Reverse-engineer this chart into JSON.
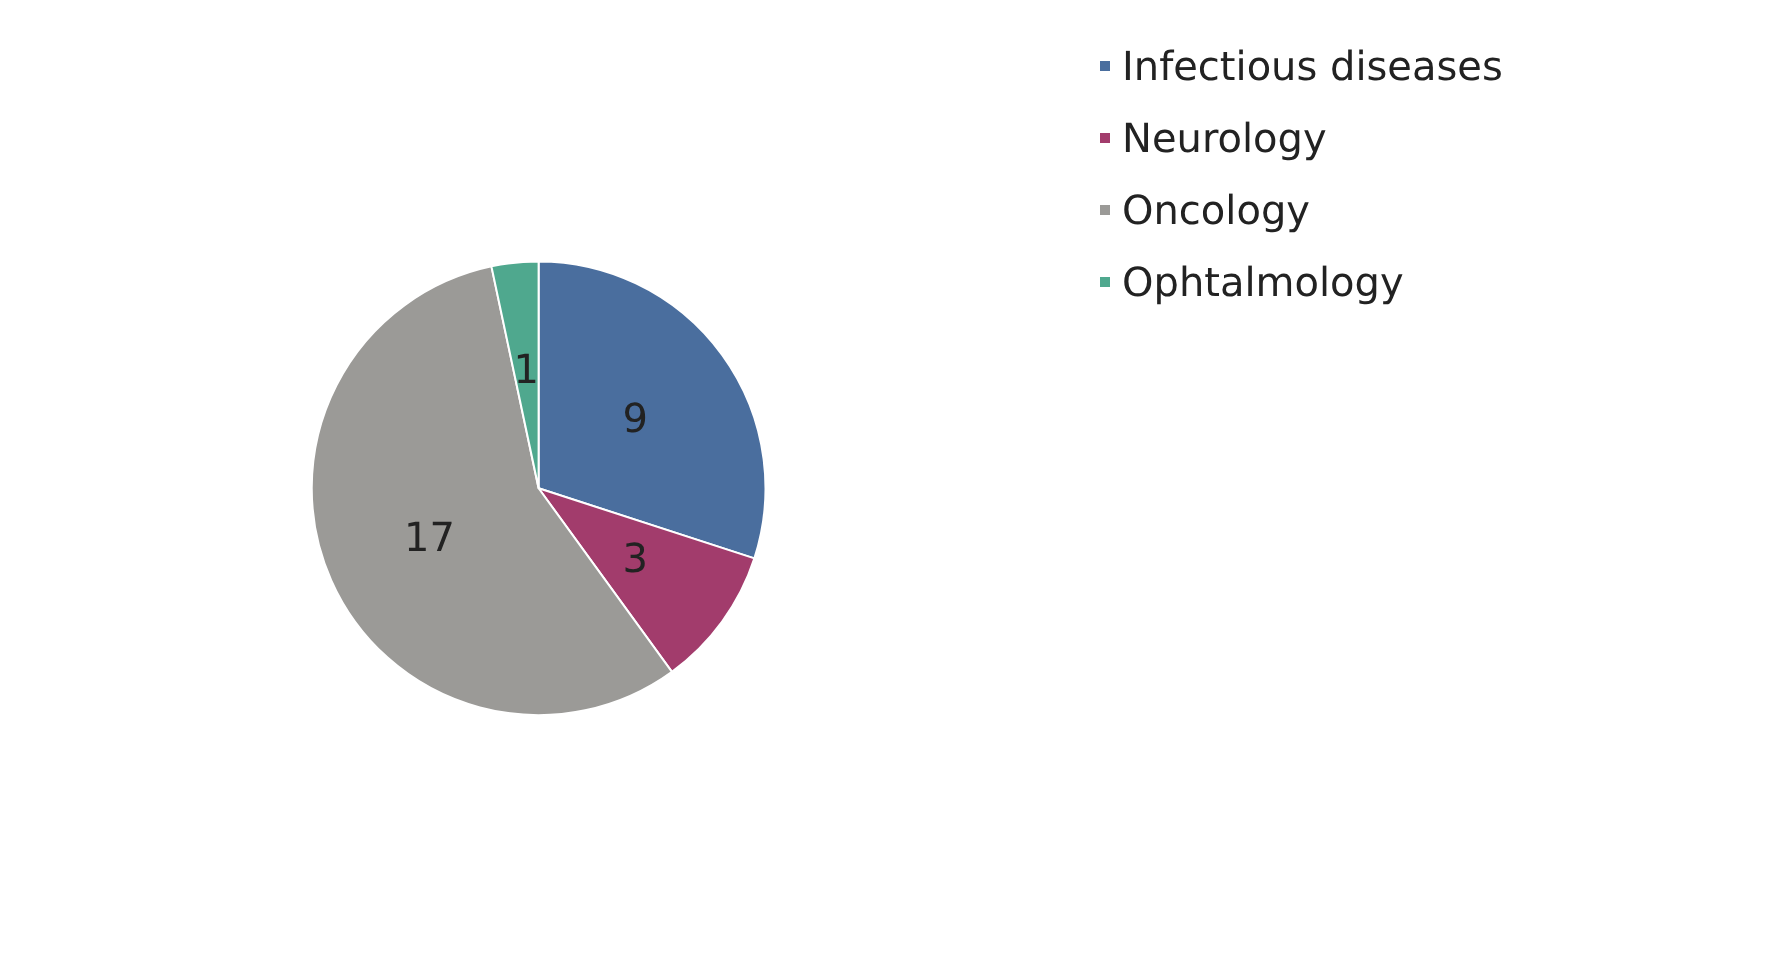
{
  "chart_data": {
    "type": "pie",
    "categories": [
      "Infectious diseases",
      "Neurology",
      "Oncology",
      "Ophtalmology"
    ],
    "values": [
      9,
      3,
      17,
      1
    ],
    "colors": [
      "#4a6e9e",
      "#a23c6c",
      "#9b9a97",
      "#4fa88e"
    ],
    "data_labels": true,
    "legend": "top right"
  }
}
